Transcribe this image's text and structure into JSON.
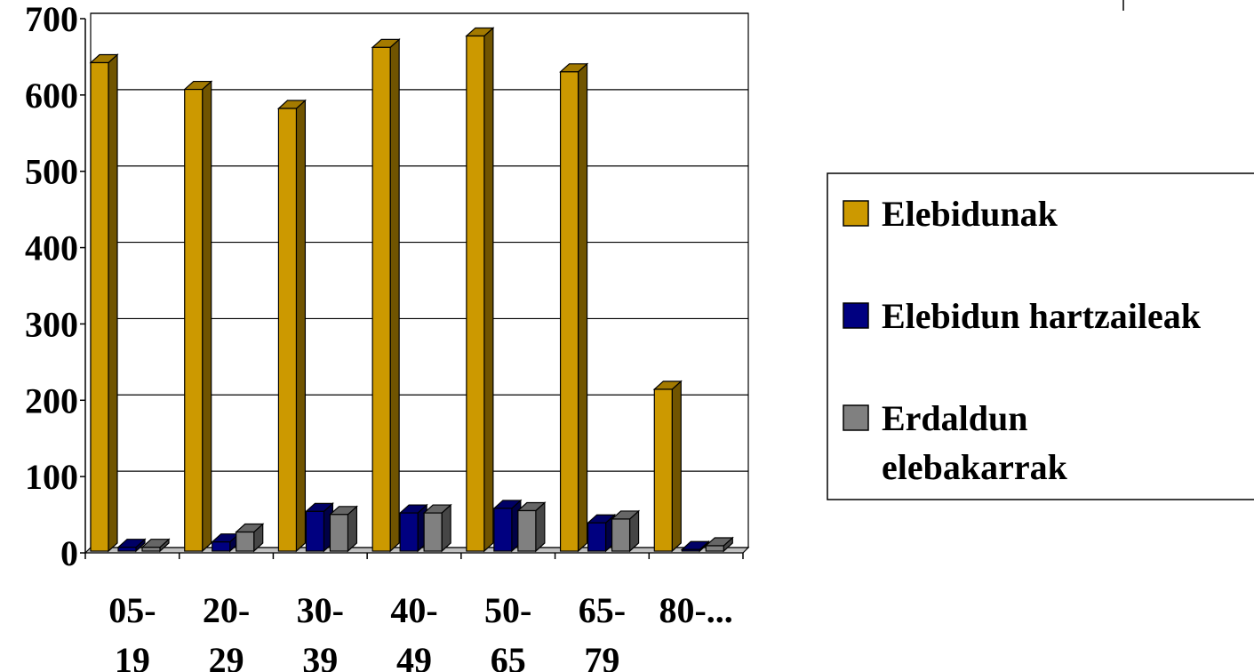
{
  "chart_data": {
    "type": "bar",
    "title": "",
    "xlabel": "",
    "ylabel": "",
    "ylim": [
      0,
      700
    ],
    "yticks": [
      0,
      100,
      200,
      300,
      400,
      500,
      600,
      700
    ],
    "ytick_labels": [
      "0",
      "100",
      "200",
      "300",
      "400",
      "500",
      "600",
      "700"
    ],
    "categories": [
      [
        "05-",
        "19"
      ],
      [
        "20-",
        "29"
      ],
      [
        "30-",
        "39"
      ],
      [
        "40-",
        "49"
      ],
      [
        "50-",
        "65"
      ],
      [
        "65-",
        "79"
      ],
      [
        "80-...",
        ""
      ]
    ],
    "series": [
      {
        "name": "Elebidunak",
        "color": "#CC9900",
        "values": [
          640,
          605,
          580,
          660,
          675,
          628,
          212
        ]
      },
      {
        "name": "Elebidun hartzaileak",
        "color": "#000080",
        "values": [
          5,
          12,
          52,
          50,
          56,
          37,
          2
        ]
      },
      {
        "name": "Erdaldun elebakarrak",
        "color": "#808080",
        "values": [
          5,
          25,
          48,
          50,
          53,
          42,
          7
        ]
      }
    ],
    "legend": {
      "placement": "right",
      "entries": [
        [
          "Elebidunak"
        ],
        [
          "Elebidun hartzaileak"
        ],
        [
          "Erdaldun",
          "elebakarrak"
        ]
      ]
    },
    "grid": true,
    "style": "3d-bar"
  }
}
